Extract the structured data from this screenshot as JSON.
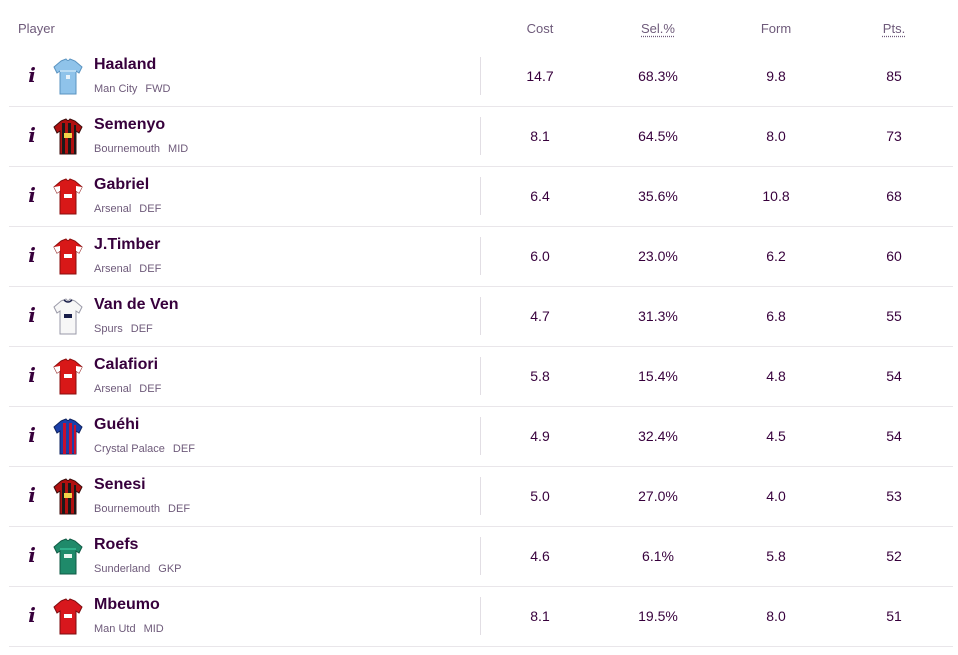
{
  "header": {
    "player": "Player",
    "cost": "Cost",
    "sel": "Sel.%",
    "form": "Form",
    "pts": "Pts."
  },
  "colors": {
    "primary": "#37003c",
    "muted": "#6e5a7a",
    "divider": "#e9e6ea"
  },
  "players": [
    {
      "name": "Haaland",
      "team": "Man City",
      "pos": "FWD",
      "cost": "14.7",
      "sel": "68.3%",
      "form": "9.8",
      "pts": "85",
      "shirt": "mancity"
    },
    {
      "name": "Semenyo",
      "team": "Bournemouth",
      "pos": "MID",
      "cost": "8.1",
      "sel": "64.5%",
      "form": "8.0",
      "pts": "73",
      "shirt": "bournemouth"
    },
    {
      "name": "Gabriel",
      "team": "Arsenal",
      "pos": "DEF",
      "cost": "6.4",
      "sel": "35.6%",
      "form": "10.8",
      "pts": "68",
      "shirt": "arsenal"
    },
    {
      "name": "J.Timber",
      "team": "Arsenal",
      "pos": "DEF",
      "cost": "6.0",
      "sel": "23.0%",
      "form": "6.2",
      "pts": "60",
      "shirt": "arsenal"
    },
    {
      "name": "Van de Ven",
      "team": "Spurs",
      "pos": "DEF",
      "cost": "4.7",
      "sel": "31.3%",
      "form": "6.8",
      "pts": "55",
      "shirt": "spurs"
    },
    {
      "name": "Calafiori",
      "team": "Arsenal",
      "pos": "DEF",
      "cost": "5.8",
      "sel": "15.4%",
      "form": "4.8",
      "pts": "54",
      "shirt": "arsenal"
    },
    {
      "name": "Guéhi",
      "team": "Crystal Palace",
      "pos": "DEF",
      "cost": "4.9",
      "sel": "32.4%",
      "form": "4.5",
      "pts": "54",
      "shirt": "palace"
    },
    {
      "name": "Senesi",
      "team": "Bournemouth",
      "pos": "DEF",
      "cost": "5.0",
      "sel": "27.0%",
      "form": "4.0",
      "pts": "53",
      "shirt": "bournemouth"
    },
    {
      "name": "Roefs",
      "team": "Sunderland",
      "pos": "GKP",
      "cost": "4.6",
      "sel": "6.1%",
      "form": "5.8",
      "pts": "52",
      "shirt": "gk-green"
    },
    {
      "name": "Mbeumo",
      "team": "Man Utd",
      "pos": "MID",
      "cost": "8.1",
      "sel": "19.5%",
      "form": "8.0",
      "pts": "51",
      "shirt": "manutd"
    }
  ]
}
